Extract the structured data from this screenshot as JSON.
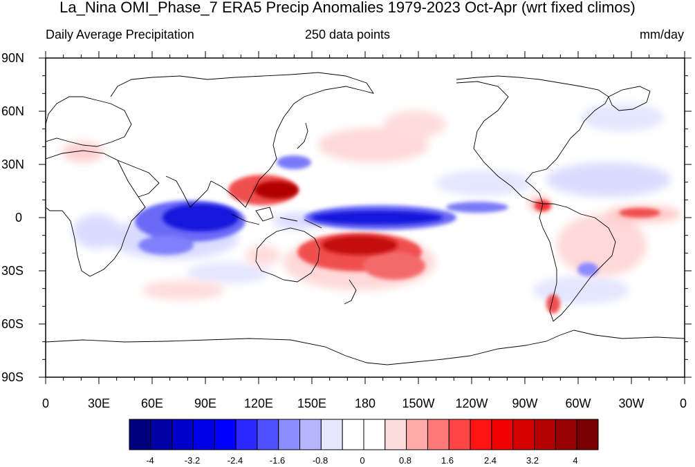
{
  "header": {
    "title": "La_Nina OMI_Phase_7 ERA5 Precip Anomalies 1979-2023 Oct-Apr (wrt fixed climos)",
    "left_label": "Daily Average Precipitation",
    "center_label": "250 data points",
    "right_label": "mm/day"
  },
  "axes": {
    "lat_labels": [
      "90N",
      "60N",
      "30N",
      "0",
      "30S",
      "60S",
      "90S"
    ],
    "lon_labels": [
      "0",
      "30E",
      "60E",
      "90E",
      "120E",
      "150E",
      "180",
      "150W",
      "120W",
      "90W",
      "60W",
      "30W",
      "0"
    ]
  },
  "colorbar": {
    "colors": [
      "#00007f",
      "#0000a6",
      "#0000c8",
      "#0000e6",
      "#0000ff",
      "#2828ff",
      "#5050ff",
      "#8c8cff",
      "#b4b4ff",
      "#e6e6ff",
      "#ffffff",
      "#ffffff",
      "#ffdcdc",
      "#ffaaaa",
      "#ff7878",
      "#ff4646",
      "#ff1414",
      "#f00000",
      "#d20000",
      "#b40000",
      "#960000",
      "#780000"
    ],
    "labels": [
      "-4",
      "-3.2",
      "-2.4",
      "-1.6",
      "-0.8",
      "0",
      "0.8",
      "1.6",
      "2.4",
      "3.2",
      "4"
    ]
  },
  "anomaly_colors": {
    "dry_strong": "#1010d8",
    "dry_mid": "#5a5af2",
    "dry_light": "#d6d8ff",
    "wet_strong": "#a80000",
    "wet_mid": "#ee3a3a",
    "wet_light": "#ffd2d2"
  }
}
